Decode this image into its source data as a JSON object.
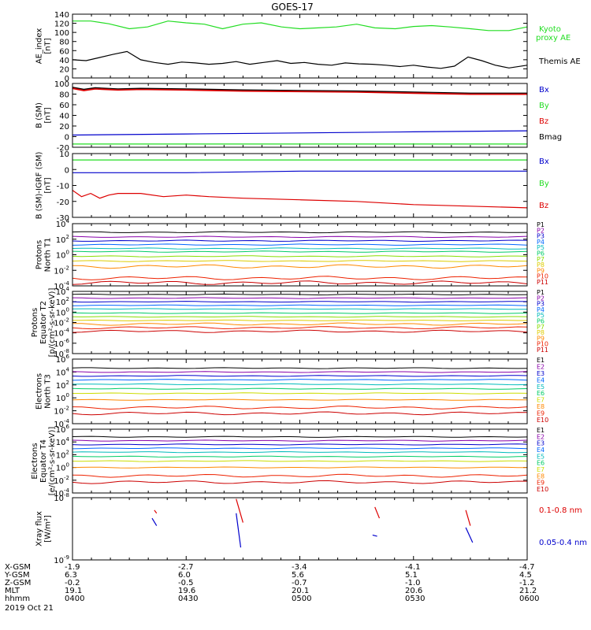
{
  "title": "GOES-17",
  "colors": {
    "black": "#000000",
    "green": "#22dd22",
    "red": "#dd0000",
    "blue": "#0000cc",
    "P": [
      "#000000",
      "#8800aa",
      "#0000cc",
      "#0066ff",
      "#00bbbb",
      "#00cc66",
      "#88dd00",
      "#ddcc00",
      "#ff8800",
      "#ee2200",
      "#cc0000"
    ],
    "E": [
      "#000000",
      "#8800aa",
      "#0000cc",
      "#0066ff",
      "#00bbbb",
      "#00cc66",
      "#ccdd00",
      "#ff8800",
      "#ee2200",
      "#cc0000"
    ]
  },
  "chart_data": [
    {
      "type": "line",
      "ylabel": [
        "AE_index",
        "[nT]"
      ],
      "ylim": [
        0,
        140
      ],
      "yticks": [
        "0",
        "20",
        "40",
        "60",
        "80",
        "100",
        "120",
        "140"
      ],
      "x_range_hours": [
        4.0,
        6.0
      ],
      "series": [
        {
          "name": "Kyoto proxy AE",
          "label_lines": [
            "Kyoto",
            "proxy AE"
          ],
          "color": "#22dd22",
          "x": [
            4.0,
            4.08,
            4.16,
            4.25,
            4.33,
            4.42,
            4.5,
            4.58,
            4.66,
            4.75,
            4.83,
            4.92,
            5.0,
            5.08,
            5.16,
            5.25,
            5.33,
            5.42,
            5.5,
            5.58,
            5.66,
            5.75,
            5.83,
            5.92,
            6.0
          ],
          "y": [
            125,
            125,
            119,
            108,
            112,
            125,
            121,
            118,
            108,
            118,
            121,
            112,
            108,
            110,
            112,
            118,
            110,
            108,
            113,
            115,
            112,
            108,
            104,
            104,
            112
          ]
        },
        {
          "name": "Themis AE",
          "label_lines": [
            "Themis AE"
          ],
          "color": "#000000",
          "x": [
            4.0,
            4.06,
            4.12,
            4.18,
            4.24,
            4.3,
            4.36,
            4.42,
            4.48,
            4.54,
            4.6,
            4.66,
            4.72,
            4.78,
            4.84,
            4.9,
            4.96,
            5.02,
            5.08,
            5.14,
            5.2,
            5.26,
            5.32,
            5.38,
            5.44,
            5.5,
            5.56,
            5.62,
            5.68,
            5.74,
            5.8,
            5.86,
            5.92,
            6.0
          ],
          "y": [
            40,
            38,
            45,
            52,
            58,
            40,
            34,
            30,
            35,
            33,
            30,
            32,
            36,
            30,
            34,
            38,
            32,
            34,
            30,
            28,
            33,
            31,
            30,
            28,
            25,
            28,
            24,
            21,
            26,
            46,
            38,
            28,
            22,
            28
          ]
        }
      ]
    },
    {
      "type": "line",
      "ylabel": [
        "B (SM)",
        "[nT]"
      ],
      "ylim": [
        -20,
        100
      ],
      "yticks": [
        "-20",
        "0",
        "20",
        "40",
        "60",
        "80",
        "100"
      ],
      "x_range_hours": [
        4.0,
        6.0
      ],
      "series": [
        {
          "name": "Bx",
          "color": "#0000cc",
          "x": [
            4.0,
            4.5,
            5.0,
            5.5,
            6.0
          ],
          "y": [
            3,
            5,
            7,
            9,
            11
          ]
        },
        {
          "name": "By",
          "color": "#22dd22",
          "x": [
            4.0,
            4.5,
            5.0,
            5.5,
            6.0
          ],
          "y": [
            -14,
            -14,
            -14,
            -14,
            -14
          ]
        },
        {
          "name": "Bz",
          "color": "#dd0000",
          "x": [
            4.0,
            4.05,
            4.1,
            4.2,
            4.3,
            4.5,
            4.75,
            5.0,
            5.25,
            5.5,
            5.75,
            6.0
          ],
          "y": [
            91,
            87,
            90,
            88,
            89,
            88,
            86,
            85,
            84,
            82,
            80,
            80
          ]
        },
        {
          "name": "Bmag",
          "color": "#000000",
          "x": [
            4.0,
            4.05,
            4.1,
            4.2,
            4.3,
            4.5,
            4.75,
            5.0,
            5.25,
            5.5,
            5.75,
            6.0
          ],
          "y": [
            93,
            89,
            92,
            90,
            91,
            90,
            88,
            87,
            86,
            84,
            82,
            82
          ]
        }
      ]
    },
    {
      "type": "line",
      "ylabel": [
        "B (SM)-IGRF (SM)",
        "[nT]"
      ],
      "ylim": [
        -30,
        10
      ],
      "yticks": [
        "-30",
        "-20",
        "-10",
        "0",
        "10"
      ],
      "x_range_hours": [
        4.0,
        6.0
      ],
      "series": [
        {
          "name": "Bx",
          "color": "#0000cc",
          "x": [
            4.0,
            4.5,
            5.0,
            5.5,
            6.0
          ],
          "y": [
            -2,
            -2,
            -1,
            -1,
            -1
          ]
        },
        {
          "name": "By",
          "color": "#22dd22",
          "x": [
            4.0,
            4.5,
            5.0,
            5.5,
            6.0
          ],
          "y": [
            6,
            6,
            6,
            6,
            6
          ]
        },
        {
          "name": "Bz",
          "color": "#dd0000",
          "x": [
            4.0,
            4.04,
            4.08,
            4.12,
            4.16,
            4.2,
            4.3,
            4.4,
            4.5,
            4.6,
            4.75,
            5.0,
            5.25,
            5.5,
            5.75,
            6.0
          ],
          "y": [
            -13,
            -17,
            -15,
            -18,
            -16,
            -15,
            -15,
            -17,
            -16,
            -17,
            -18,
            -19,
            -20,
            -22,
            -23,
            -24
          ]
        }
      ]
    },
    {
      "type": "line",
      "scale": "log",
      "ylabel": [
        "Protons",
        "North T1"
      ],
      "ylim_exp": [
        -4,
        4
      ],
      "yticks_exp": [
        -4,
        -2,
        0,
        2,
        4
      ],
      "x_range_hours": [
        4.0,
        6.0
      ],
      "legend": [
        "P1",
        "P2",
        "P3",
        "P4",
        "P5",
        "P6",
        "P7",
        "P8",
        "P9",
        "P10",
        "P11"
      ],
      "levels_exp": [
        2.9,
        2.3,
        1.8,
        1.3,
        0.8,
        0.4,
        -0.2,
        -0.8,
        -1.5,
        -3.0,
        -3.6
      ]
    },
    {
      "type": "line",
      "scale": "log",
      "ylabel": [
        "Protons",
        "Equator T2",
        "[p/(cm²-s-sr-keV)]"
      ],
      "ylim_exp": [
        -8,
        4
      ],
      "yticks_exp": [
        -8,
        -6,
        -4,
        -2,
        0,
        2,
        4
      ],
      "x_range_hours": [
        4.0,
        6.0
      ],
      "legend": [
        "P1",
        "P2",
        "P3",
        "P4",
        "P5",
        "P6",
        "P7",
        "P8",
        "P9",
        "P10",
        "P11"
      ],
      "levels_exp": [
        3.4,
        2.7,
        2.0,
        1.3,
        0.6,
        -0.2,
        -0.9,
        -1.6,
        -2.3,
        -3.0,
        -3.7
      ]
    },
    {
      "type": "line",
      "scale": "log",
      "ylabel": [
        "Electrons",
        "North T3"
      ],
      "ylim_exp": [
        -4,
        6
      ],
      "yticks_exp": [
        -4,
        -2,
        0,
        2,
        4,
        6
      ],
      "x_range_hours": [
        4.0,
        6.0
      ],
      "legend": [
        "E1",
        "E2",
        "E3",
        "E4",
        "E5",
        "E6",
        "E7",
        "E8",
        "E9",
        "E10"
      ],
      "levels_exp": [
        4.6,
        4.0,
        3.4,
        2.8,
        2.1,
        1.4,
        0.7,
        -0.3,
        -1.5,
        -2.4
      ]
    },
    {
      "type": "line",
      "scale": "log",
      "ylabel": [
        "Electrons",
        "Equator T4",
        "[e/(cm²-s-sr-keV)]"
      ],
      "ylim_exp": [
        -4,
        6
      ],
      "yticks_exp": [
        -4,
        -2,
        0,
        2,
        4,
        6
      ],
      "x_range_hours": [
        4.0,
        6.0
      ],
      "legend": [
        "E1",
        "E2",
        "E3",
        "E4",
        "E5",
        "E6",
        "E7",
        "E8",
        "E9",
        "E10"
      ],
      "levels_exp": [
        4.8,
        4.2,
        3.6,
        3.0,
        2.4,
        1.7,
        1.0,
        0.0,
        -1.3,
        -2.3
      ]
    },
    {
      "type": "line",
      "scale": "log",
      "ylabel": [
        "Xray flux",
        "[W/m²]"
      ],
      "ylim_exp": [
        -9,
        -8
      ],
      "yticks_exp": [
        -9,
        -8
      ],
      "x_range_hours": [
        4.0,
        6.0
      ],
      "series": [
        {
          "name": "0.1-0.8 nm",
          "color": "#dd0000",
          "segments": [
            [
              [
                4.36,
                -8.2
              ],
              [
                4.37,
                -8.25
              ]
            ],
            [
              [
                4.72,
                -8.02
              ],
              [
                4.75,
                -8.4
              ]
            ],
            [
              [
                5.33,
                -8.15
              ],
              [
                5.35,
                -8.33
              ]
            ],
            [
              [
                5.73,
                -8.2
              ],
              [
                5.75,
                -8.45
              ]
            ]
          ]
        },
        {
          "name": "0.05-0.4 nm",
          "color": "#0000cc",
          "segments": [
            [
              [
                4.35,
                -8.33
              ],
              [
                4.37,
                -8.45
              ]
            ],
            [
              [
                4.72,
                -8.25
              ],
              [
                4.74,
                -8.8
              ]
            ],
            [
              [
                5.32,
                -8.6
              ],
              [
                5.34,
                -8.62
              ]
            ],
            [
              [
                5.73,
                -8.48
              ],
              [
                5.76,
                -8.72
              ]
            ]
          ]
        }
      ]
    }
  ],
  "footer": {
    "labels": [
      "X-GSM",
      "Y-GSM",
      "Z-GSM",
      "MLT",
      "hhmm"
    ],
    "columns": [
      [
        "-1.9",
        "6.3",
        "-0.2",
        "19.1",
        "0400"
      ],
      [
        "-2.7",
        "6.0",
        "-0.5",
        "19.6",
        "0430"
      ],
      [
        "-3.4",
        "5.6",
        "-0.7",
        "20.1",
        "0500"
      ],
      [
        "-4.1",
        "5.1",
        "-1.0",
        "20.6",
        "0530"
      ],
      [
        "-4.7",
        "4.5",
        "-1.2",
        "21.2",
        "0600"
      ]
    ],
    "date": "2019 Oct 21"
  }
}
